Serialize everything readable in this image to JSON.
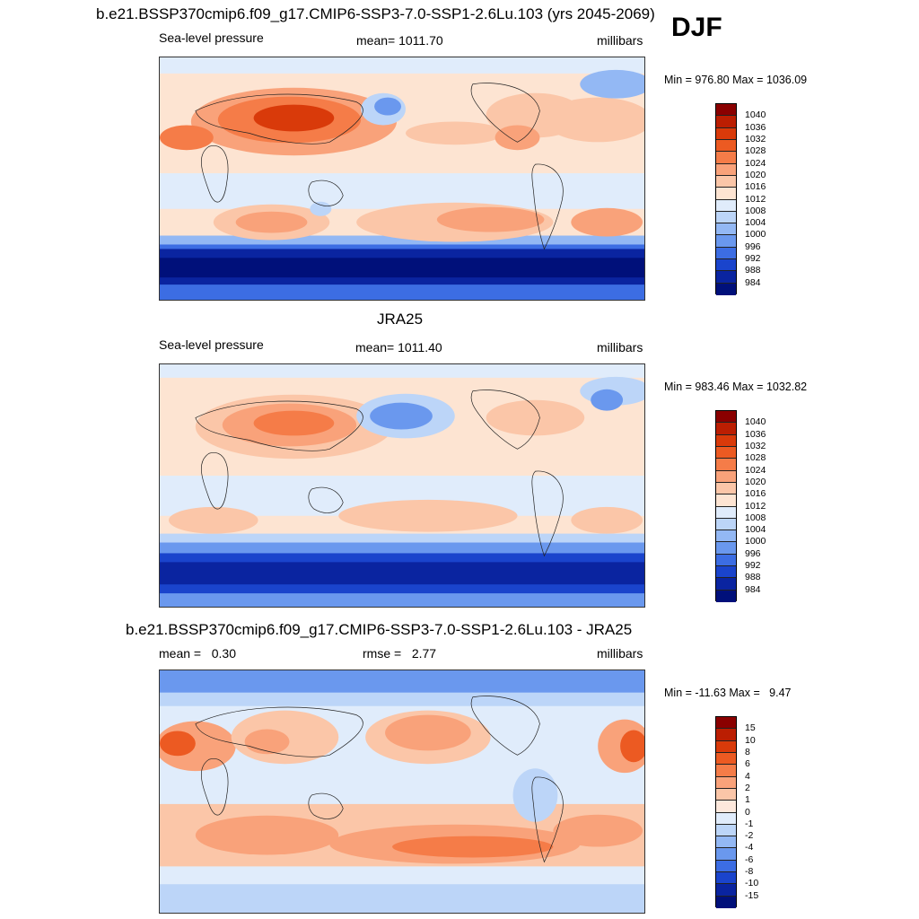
{
  "season_label": "DJF",
  "panels": [
    {
      "title": "b.e21.BSSP370cmip6.f09_g17.CMIP6-SSP3-7.0-SSP1-2.6Lu.103 (yrs 2045-2069)",
      "left_label": "Sea-level pressure",
      "center_label": "mean= 1011.70",
      "right_label": "millibars",
      "minmax": "Min = 976.80 Max = 1036.09",
      "levels": [
        "1040",
        "1036",
        "1032",
        "1028",
        "1024",
        "1020",
        "1016",
        "1012",
        "1008",
        "1004",
        "1000",
        "996",
        "992",
        "988",
        "984"
      ],
      "colors": [
        "#8a0000",
        "#bb1e02",
        "#d93a0a",
        "#ec5a22",
        "#f57c48",
        "#f9a27a",
        "#fbc6a8",
        "#fde4d2",
        "#e0ecfb",
        "#bcd5f8",
        "#93b8f4",
        "#6a98ee",
        "#3c6de3",
        "#1a44cc",
        "#0a24a0",
        "#00107a"
      ]
    },
    {
      "title": "JRA25",
      "left_label": "Sea-level pressure",
      "center_label": "mean= 1011.40",
      "right_label": "millibars",
      "minmax": "Min = 983.46 Max = 1032.82",
      "levels": [
        "1040",
        "1036",
        "1032",
        "1028",
        "1024",
        "1020",
        "1016",
        "1012",
        "1008",
        "1004",
        "1000",
        "996",
        "992",
        "988",
        "984"
      ],
      "colors": [
        "#8a0000",
        "#bb1e02",
        "#d93a0a",
        "#ec5a22",
        "#f57c48",
        "#f9a27a",
        "#fbc6a8",
        "#fde4d2",
        "#e0ecfb",
        "#bcd5f8",
        "#93b8f4",
        "#6a98ee",
        "#3c6de3",
        "#1a44cc",
        "#0a24a0",
        "#00107a"
      ]
    },
    {
      "title": "b.e21.BSSP370cmip6.f09_g17.CMIP6-SSP3-7.0-SSP1-2.6Lu.103 - JRA25",
      "left_label": "mean =   0.30",
      "center_label": "rmse =   2.77",
      "right_label": "millibars",
      "minmax": "Min = -11.63 Max =   9.47",
      "levels": [
        "15",
        "10",
        "8",
        "6",
        "4",
        "2",
        "1",
        "0",
        "-1",
        "-2",
        "-4",
        "-6",
        "-8",
        "-10",
        "-15"
      ],
      "colors": [
        "#8a0000",
        "#bb1e02",
        "#d93a0a",
        "#ec5a22",
        "#f57c48",
        "#f9a27a",
        "#fbc6a8",
        "#fde8dc",
        "#e0ecfb",
        "#bcd5f8",
        "#93b8f4",
        "#6a98ee",
        "#3c6de3",
        "#1a44cc",
        "#0a24a0",
        "#00107a"
      ]
    }
  ]
}
